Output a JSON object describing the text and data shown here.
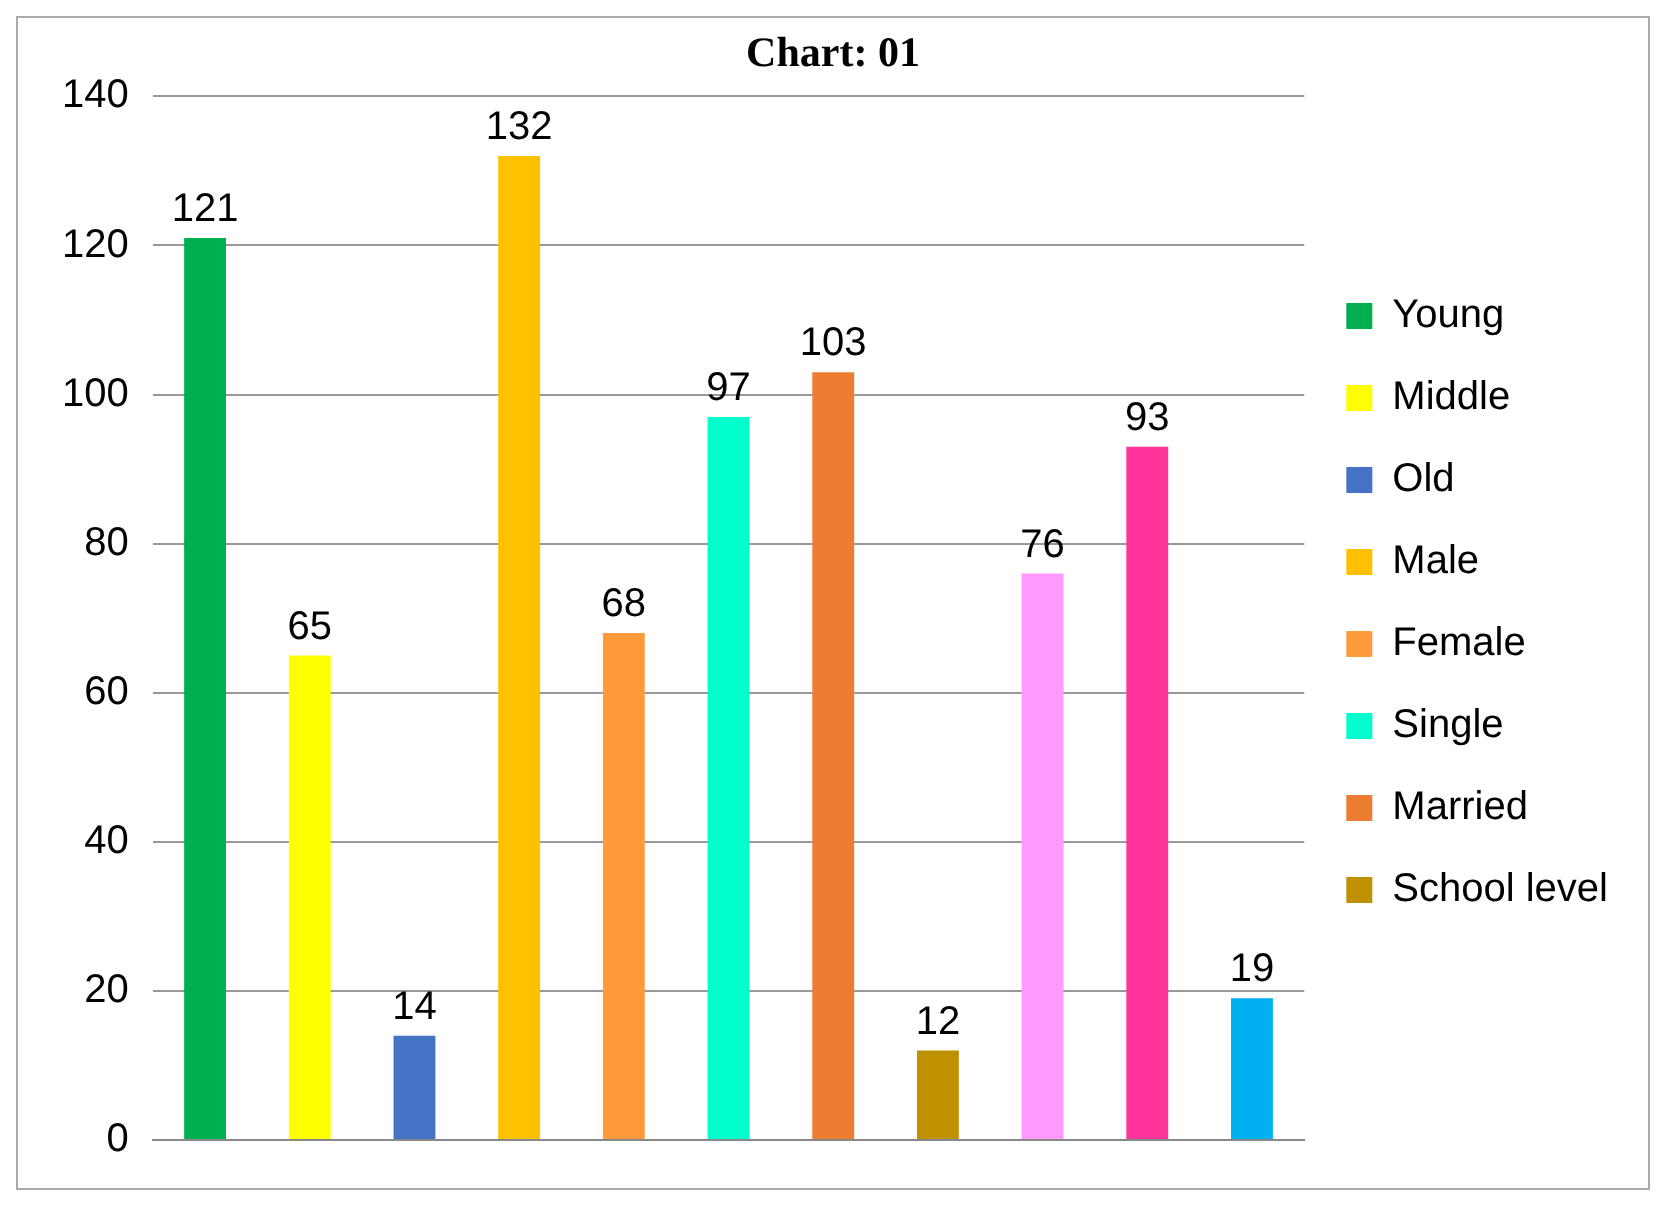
{
  "chart_data": {
    "type": "bar",
    "title": "Chart: 01",
    "categories": [
      null,
      null,
      null,
      null,
      null,
      null,
      null,
      null,
      null,
      null,
      null
    ],
    "series": [
      {
        "name": "Young",
        "color": "#00b050",
        "values": [
          121,
          null,
          null,
          null,
          null,
          null,
          null,
          null,
          null,
          null,
          null
        ]
      },
      {
        "name": "Middle",
        "color": "#ffff00",
        "values": [
          null,
          65,
          null,
          null,
          null,
          null,
          null,
          null,
          null,
          null,
          null
        ]
      },
      {
        "name": "Old",
        "color": "#4472c4",
        "values": [
          null,
          null,
          14,
          null,
          null,
          null,
          null,
          null,
          null,
          null,
          null
        ]
      },
      {
        "name": "Male",
        "color": "#ffc000",
        "values": [
          null,
          null,
          null,
          132,
          null,
          null,
          null,
          null,
          null,
          null,
          null
        ]
      },
      {
        "name": "Female",
        "color": "#ff9a3c",
        "values": [
          null,
          null,
          null,
          null,
          68,
          null,
          null,
          null,
          null,
          null,
          null
        ]
      },
      {
        "name": "Single",
        "color": "#00ffcc",
        "values": [
          null,
          null,
          null,
          null,
          null,
          97,
          null,
          null,
          null,
          null,
          null
        ]
      },
      {
        "name": "Married",
        "color": "#ed7d31",
        "values": [
          null,
          null,
          null,
          null,
          null,
          null,
          103,
          null,
          null,
          null,
          null
        ]
      },
      {
        "name": "School level",
        "color": "#bf9000",
        "values": [
          null,
          null,
          null,
          null,
          null,
          null,
          null,
          12,
          null,
          null,
          null
        ]
      },
      {
        "color": "#ff99ff",
        "values": [
          null,
          null,
          null,
          null,
          null,
          null,
          null,
          null,
          76,
          null,
          null
        ]
      },
      {
        "color": "#ff3399",
        "values": [
          null,
          null,
          null,
          null,
          null,
          null,
          null,
          null,
          null,
          93,
          null
        ]
      },
      {
        "color": "#00b0f0",
        "values": [
          null,
          null,
          null,
          null,
          null,
          null,
          null,
          null,
          null,
          null,
          19
        ]
      }
    ],
    "ylim": [
      0,
      140
    ],
    "yticks": [
      0,
      20,
      40,
      60,
      80,
      100,
      120,
      140
    ],
    "grid": "y",
    "legend": "right",
    "tick_labels": "y",
    "data_labels": true
  }
}
